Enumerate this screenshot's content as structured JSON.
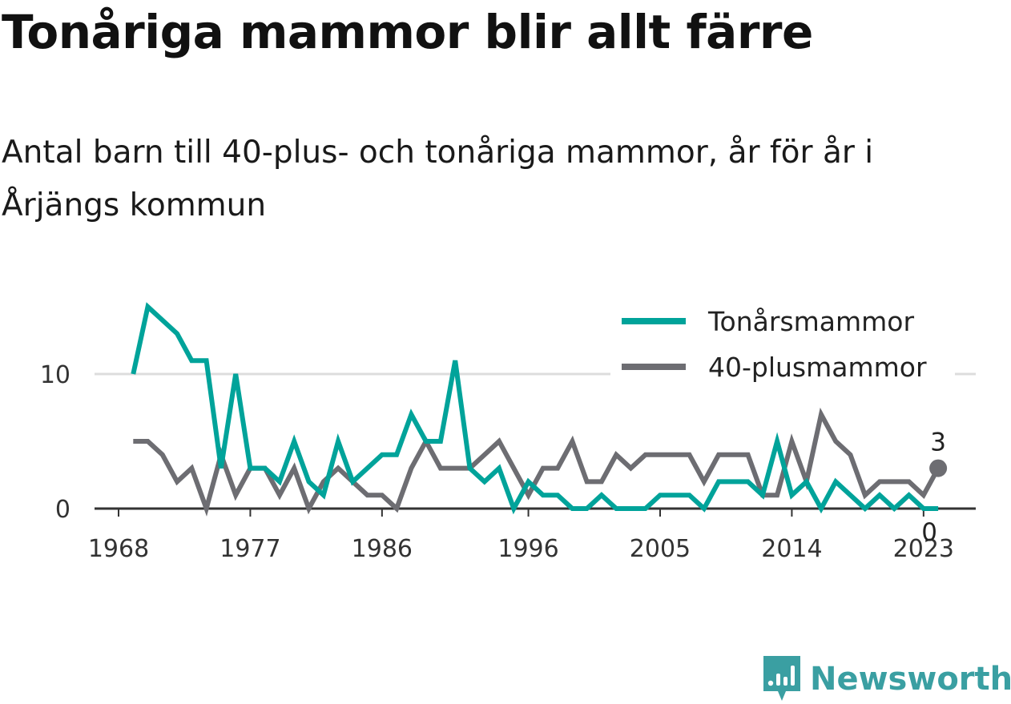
{
  "title": "Tonåriga mammor blir allt färre",
  "subtitle": "Antal barn till 40-plus- och tonåriga mammor, år för år i Årjängs kommun",
  "brand": {
    "name": "Newsworthy",
    "color": "#3a9fa2",
    "icon": "newsworthy-chart-icon"
  },
  "colors": {
    "teen": "#00a39a",
    "plus40": "#6d6d72",
    "grid": "#dddddd",
    "axis": "#333333"
  },
  "chart_data": {
    "type": "line",
    "x": [
      1969,
      1970,
      1971,
      1972,
      1973,
      1974,
      1975,
      1976,
      1977,
      1978,
      1979,
      1980,
      1981,
      1982,
      1983,
      1984,
      1985,
      1986,
      1987,
      1988,
      1989,
      1990,
      1991,
      1992,
      1993,
      1994,
      1995,
      1996,
      1997,
      1998,
      1999,
      2000,
      2001,
      2002,
      2003,
      2004,
      2005,
      2006,
      2007,
      2008,
      2009,
      2010,
      2011,
      2012,
      2013,
      2014,
      2015,
      2016,
      2017,
      2018,
      2019,
      2020,
      2021,
      2022,
      2023,
      2024
    ],
    "xticks": [
      "1968",
      "1977",
      "1986",
      "1996",
      "2005",
      "2014",
      "2023"
    ],
    "ylim": [
      0,
      15
    ],
    "yticks": [
      "0",
      "10"
    ],
    "grid": "horizontal",
    "legend_position": "top-right",
    "series": [
      {
        "name": "Tonårsmammor",
        "color_key": "teen",
        "values": [
          10,
          15,
          14,
          13,
          11,
          11,
          3,
          10,
          3,
          3,
          2,
          5,
          2,
          1,
          5,
          2,
          3,
          4,
          4,
          7,
          5,
          5,
          11,
          3,
          2,
          3,
          0,
          2,
          1,
          1,
          0,
          0,
          1,
          0,
          0,
          0,
          1,
          1,
          1,
          0,
          2,
          2,
          2,
          1,
          5,
          1,
          2,
          0,
          2,
          1,
          0,
          1,
          0,
          1,
          0,
          0
        ]
      },
      {
        "name": "40-plusmammor",
        "color_key": "plus40",
        "values": [
          5,
          5,
          4,
          2,
          3,
          0,
          4,
          1,
          3,
          3,
          1,
          3,
          0,
          2,
          3,
          2,
          1,
          1,
          0,
          3,
          5,
          3,
          3,
          3,
          4,
          5,
          3,
          1,
          3,
          3,
          5,
          2,
          2,
          4,
          3,
          4,
          4,
          4,
          4,
          2,
          4,
          4,
          4,
          1,
          1,
          5,
          2,
          7,
          5,
          4,
          1,
          2,
          2,
          2,
          1,
          3
        ]
      }
    ],
    "end_labels": {
      "plus40": "3",
      "teen": "0"
    }
  }
}
